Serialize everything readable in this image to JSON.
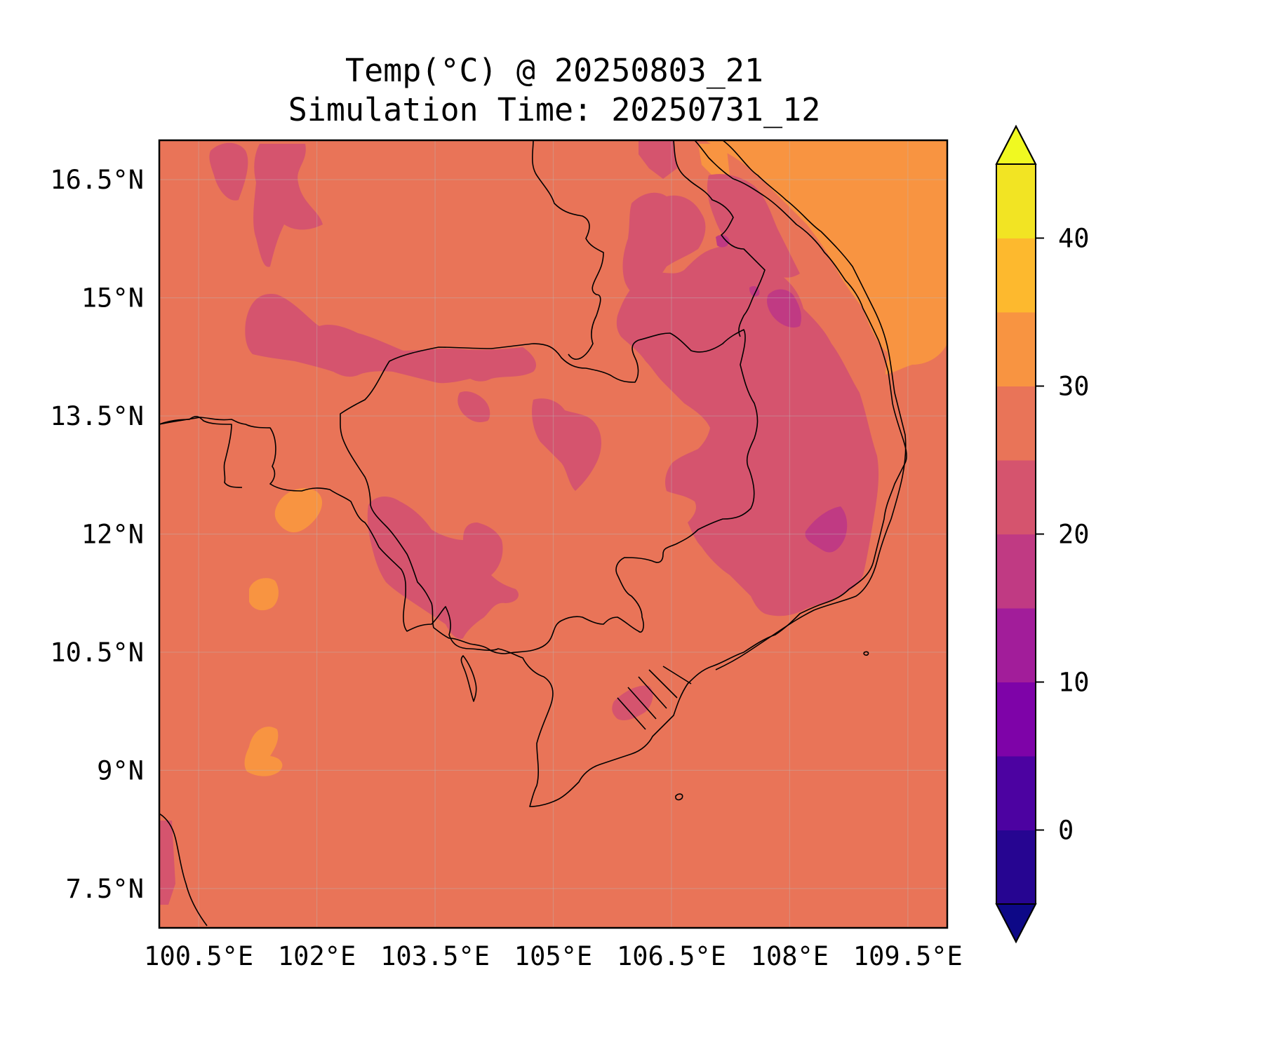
{
  "title": {
    "line1": "Temp(°C) @ 20250803_21",
    "line2": "Simulation Time: 20250731_12"
  },
  "map": {
    "lon_range": [
      100.0,
      110.0
    ],
    "lat_range": [
      7.0,
      17.0
    ],
    "lon_ticks": [
      {
        "value": 100.5,
        "label": "100.5°E"
      },
      {
        "value": 102.0,
        "label": "102°E"
      },
      {
        "value": 103.5,
        "label": "103.5°E"
      },
      {
        "value": 105.0,
        "label": "105°E"
      },
      {
        "value": 106.5,
        "label": "106.5°E"
      },
      {
        "value": 108.0,
        "label": "108°E"
      },
      {
        "value": 109.5,
        "label": "109.5°E"
      }
    ],
    "lat_ticks": [
      {
        "value": 16.5,
        "label": "16.5°N"
      },
      {
        "value": 15.0,
        "label": "15°N"
      },
      {
        "value": 13.5,
        "label": "13.5°N"
      },
      {
        "value": 12.0,
        "label": "12°N"
      },
      {
        "value": 10.5,
        "label": "10.5°N"
      },
      {
        "value": 9.0,
        "label": "9°N"
      },
      {
        "value": 7.5,
        "label": "7.5°N"
      }
    ],
    "gridlines": true,
    "background_bin_color": "#e97458"
  },
  "colorbar": {
    "min": -5,
    "max": 45,
    "extend": "both",
    "levels": [
      -5,
      0,
      5,
      10,
      15,
      20,
      25,
      30,
      35,
      40,
      45
    ],
    "colors": [
      "#260591",
      "#4c02a1",
      "#7e03a8",
      "#a21d9a",
      "#c03a83",
      "#d5546e",
      "#e97458",
      "#f89441",
      "#fdb92e",
      "#f2e423"
    ],
    "under_color": "#0d0887",
    "over_color": "#f0f921",
    "ticks": [
      {
        "value": 0,
        "label": "0"
      },
      {
        "value": 10,
        "label": "10"
      },
      {
        "value": 20,
        "label": "20"
      },
      {
        "value": 30,
        "label": "30"
      },
      {
        "value": 40,
        "label": "40"
      }
    ]
  }
}
